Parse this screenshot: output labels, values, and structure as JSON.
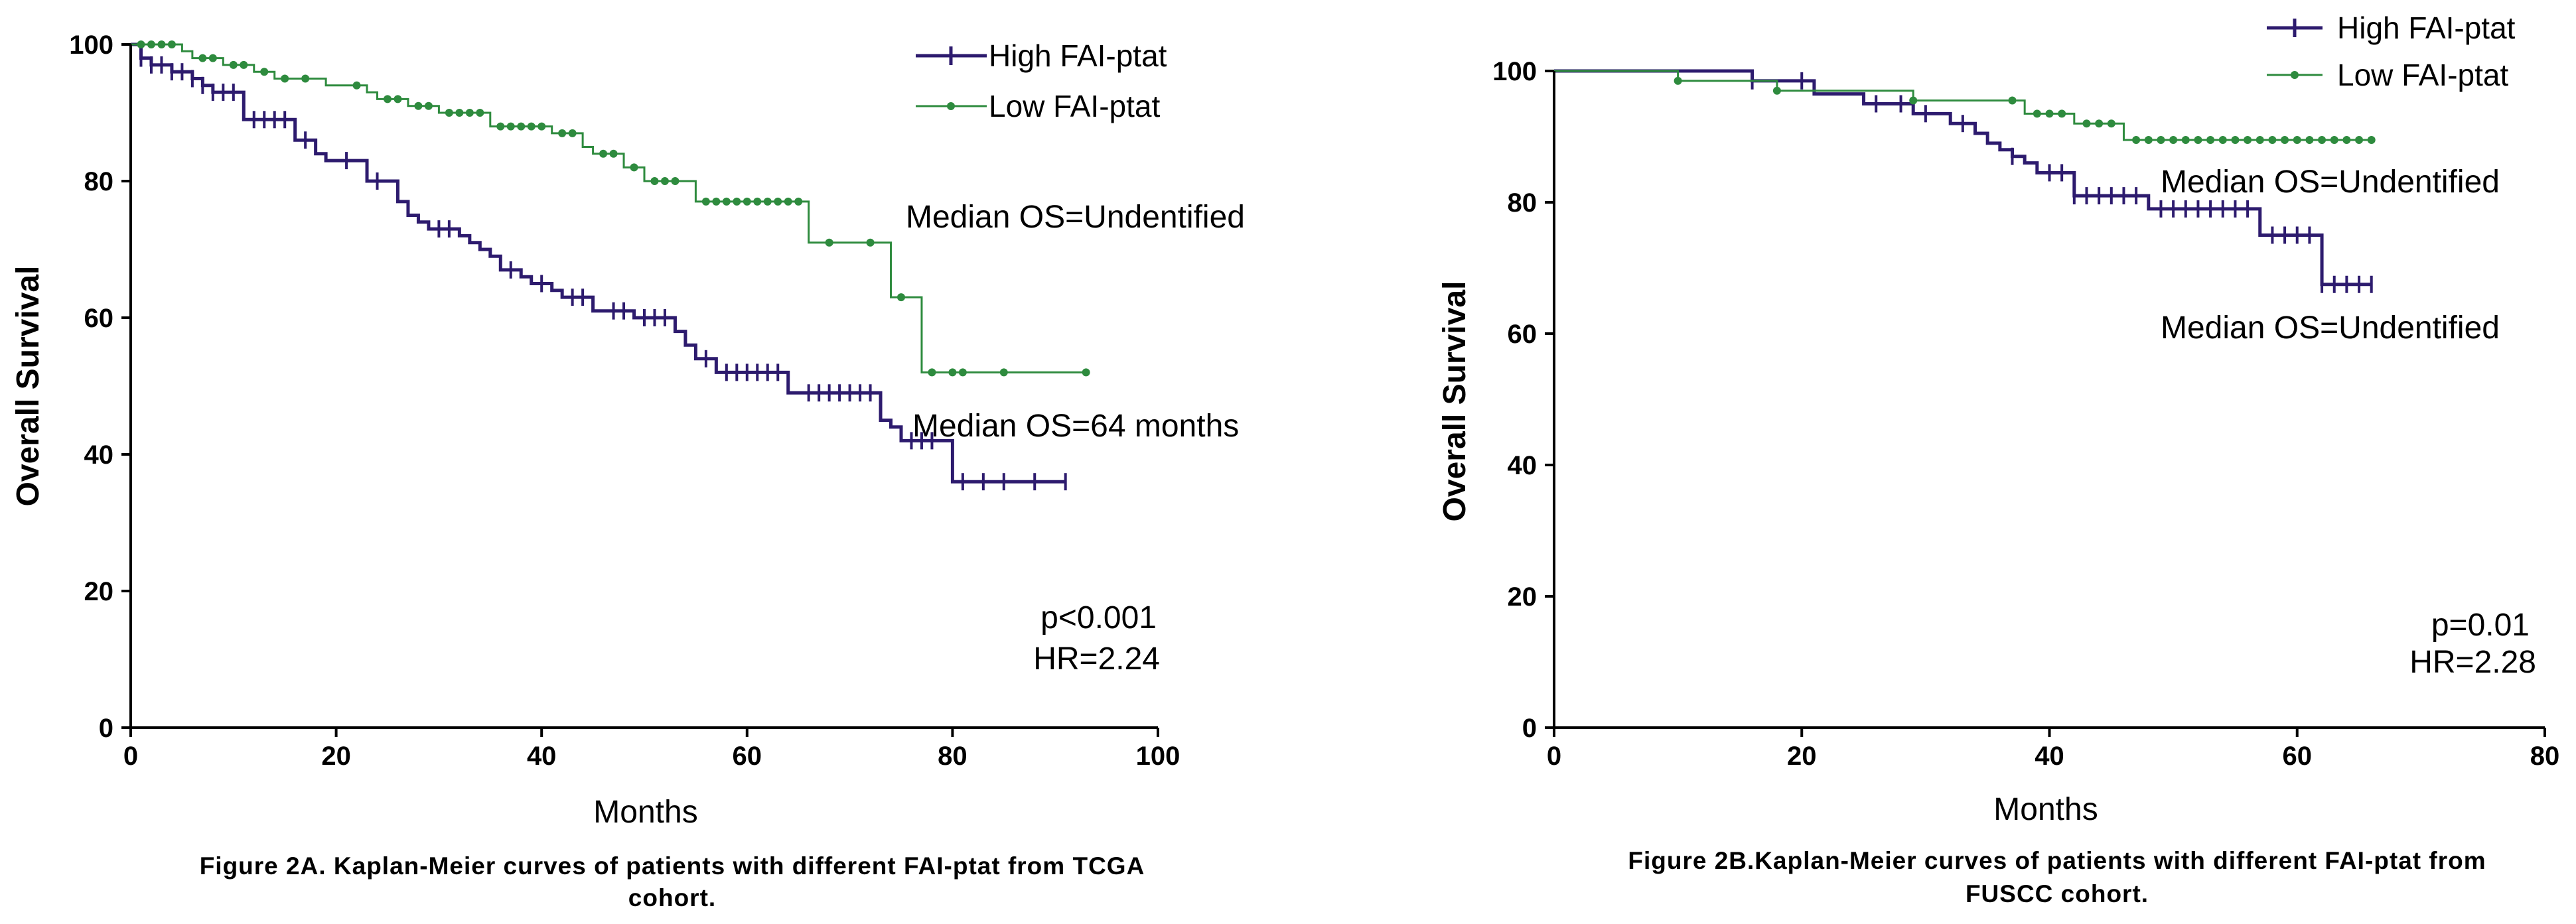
{
  "colors": {
    "high": "#2d1b6e",
    "low": "#2e8b3e"
  },
  "chart_data": [
    {
      "type": "line",
      "subtype": "kaplan-meier",
      "title": "",
      "xlabel": "Months",
      "ylabel": "Overall Survival",
      "xlim": [
        0,
        100
      ],
      "ylim": [
        0,
        100
      ],
      "xticks": [
        "0",
        "20",
        "40",
        "60",
        "80",
        "100"
      ],
      "yticks": [
        "0",
        "20",
        "40",
        "60",
        "80",
        "100"
      ],
      "legend": {
        "position": "top-right",
        "entries": [
          "High FAI-ptat",
          "Low FAI-ptat"
        ]
      },
      "series": [
        {
          "name": "High FAI-ptat",
          "color": "#2d1b6e",
          "steps": [
            [
              0,
              100
            ],
            [
              1,
              98
            ],
            [
              2,
              97
            ],
            [
              4,
              96
            ],
            [
              6,
              95
            ],
            [
              7,
              94
            ],
            [
              8,
              93
            ],
            [
              11,
              89
            ],
            [
              16,
              86
            ],
            [
              18,
              84
            ],
            [
              19,
              83
            ],
            [
              23,
              80
            ],
            [
              26,
              77
            ],
            [
              27,
              75
            ],
            [
              28,
              74
            ],
            [
              29,
              73
            ],
            [
              32,
              72
            ],
            [
              33,
              71
            ],
            [
              34,
              70
            ],
            [
              35,
              69
            ],
            [
              36,
              67
            ],
            [
              38,
              66
            ],
            [
              39,
              65
            ],
            [
              41,
              64
            ],
            [
              42,
              63
            ],
            [
              45,
              61
            ],
            [
              49,
              60
            ],
            [
              53,
              58
            ],
            [
              54,
              56
            ],
            [
              55,
              54
            ],
            [
              57,
              52
            ],
            [
              64,
              49
            ],
            [
              73,
              45
            ],
            [
              74,
              44
            ],
            [
              75,
              42
            ],
            [
              79,
              42
            ],
            [
              80,
              36
            ],
            [
              91,
              36
            ]
          ],
          "censor_x": [
            1,
            2,
            3,
            4,
            5,
            6,
            7,
            8,
            9,
            10,
            12,
            13,
            14,
            15,
            17,
            21,
            24,
            30,
            31,
            37,
            40,
            43,
            44,
            47,
            48,
            50,
            51,
            52,
            56,
            58,
            59,
            60,
            61,
            62,
            63,
            66,
            67,
            68,
            69,
            70,
            71,
            72,
            76,
            77,
            78,
            81,
            83,
            85,
            88,
            91
          ]
        },
        {
          "name": "Low FAI-ptat",
          "color": "#2e8b3e",
          "steps": [
            [
              0,
              100
            ],
            [
              5,
              99
            ],
            [
              6,
              98
            ],
            [
              9,
              97
            ],
            [
              12,
              96
            ],
            [
              14,
              95
            ],
            [
              19,
              94
            ],
            [
              23,
              93
            ],
            [
              24,
              92
            ],
            [
              27,
              91
            ],
            [
              30,
              90
            ],
            [
              35,
              88
            ],
            [
              41,
              87
            ],
            [
              44,
              85
            ],
            [
              45,
              84
            ],
            [
              48,
              82
            ],
            [
              50,
              80
            ],
            [
              55,
              77
            ],
            [
              66,
              71
            ],
            [
              73,
              71
            ],
            [
              74,
              63
            ],
            [
              77,
              52
            ],
            [
              93,
              52
            ]
          ],
          "censor_x": [
            1,
            2,
            3,
            4,
            7,
            8,
            10,
            11,
            13,
            15,
            17,
            22,
            25,
            26,
            28,
            29,
            31,
            32,
            33,
            34,
            36,
            37,
            38,
            39,
            40,
            42,
            43,
            46,
            47,
            49,
            51,
            52,
            53,
            56,
            57,
            58,
            59,
            60,
            61,
            62,
            63,
            64,
            65,
            68,
            72,
            75,
            78,
            80,
            81,
            85,
            93
          ]
        }
      ],
      "annotations": [
        "Median OS=Undentified",
        "Median OS=64 months",
        "p<0.001",
        "HR=2.24"
      ],
      "caption_line1": "Figure 2A. Kaplan-Meier curves of patients with different FAI-ptat from TCGA",
      "caption_line2": "cohort."
    },
    {
      "type": "line",
      "subtype": "kaplan-meier",
      "title": "",
      "xlabel": "Months",
      "ylabel": "Overall Survival",
      "xlim": [
        0,
        80
      ],
      "ylim": [
        0,
        100
      ],
      "xticks": [
        "0",
        "20",
        "40",
        "60",
        "80"
      ],
      "yticks": [
        "0",
        "20",
        "40",
        "60",
        "80",
        "100"
      ],
      "legend": {
        "position": "top-right",
        "entries": [
          "High FAI-ptat",
          "Low FAI-ptat"
        ]
      },
      "series": [
        {
          "name": "High FAI-ptat",
          "color": "#2d1b6e",
          "steps": [
            [
              0,
              100
            ],
            [
              16,
              98.5
            ],
            [
              21,
              96.5
            ],
            [
              25,
              95
            ],
            [
              29,
              93.5
            ],
            [
              32,
              92
            ],
            [
              34,
              90.5
            ],
            [
              35,
              89
            ],
            [
              36,
              88
            ],
            [
              37,
              87
            ],
            [
              38,
              86
            ],
            [
              39,
              84.5
            ],
            [
              42,
              81
            ],
            [
              48,
              79
            ],
            [
              57,
              75
            ],
            [
              60,
              75
            ],
            [
              62,
              67.5
            ],
            [
              66,
              67.5
            ]
          ],
          "censor_x": [
            16,
            20,
            26,
            28,
            30,
            33,
            37,
            40,
            41,
            42,
            43,
            44,
            45,
            46,
            47,
            49,
            50,
            51,
            52,
            53,
            54,
            55,
            56,
            58,
            59,
            60,
            61,
            62,
            63,
            64,
            65,
            66
          ]
        },
        {
          "name": "Low FAI-ptat",
          "color": "#2e8b3e",
          "steps": [
            [
              0,
              100
            ],
            [
              10,
              98.5
            ],
            [
              18,
              97
            ],
            [
              29,
              95.5
            ],
            [
              37,
              95.5
            ],
            [
              38,
              93.5
            ],
            [
              42,
              92
            ],
            [
              46,
              89.5
            ],
            [
              66,
              89.5
            ]
          ],
          "censor_x": [
            10,
            18,
            29,
            37,
            39,
            40,
            41,
            43,
            44,
            45,
            47,
            48,
            49,
            50,
            51,
            52,
            53,
            54,
            55,
            56,
            57,
            58,
            59,
            60,
            61,
            62,
            63,
            64,
            65,
            66
          ]
        }
      ],
      "annotations": [
        "Median OS=Undentified",
        "Median OS=Undentified",
        "p=0.01",
        "HR=2.28"
      ],
      "caption_line1": "Figure 2B.Kaplan-Meier curves of patients with different FAI-ptat from",
      "caption_line2": "FUSCC cohort."
    }
  ]
}
